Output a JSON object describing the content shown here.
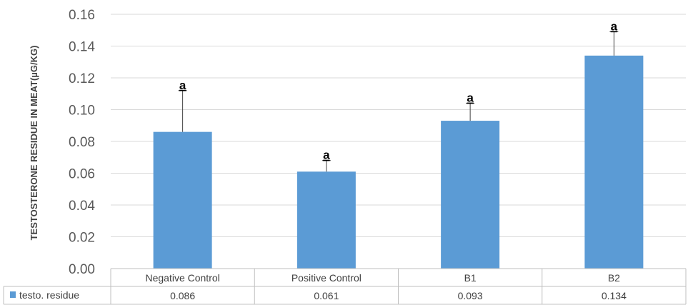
{
  "chart_data": {
    "type": "bar",
    "ylabel": "TESTOSTERONE RESIDUE IN MEAT(µG/KG)",
    "categories": [
      "Negative Control",
      "Positive Control",
      "B1",
      "B2"
    ],
    "series": [
      {
        "name": "testo. residue",
        "values": [
          0.086,
          0.061,
          0.093,
          0.134
        ],
        "value_labels": [
          "0.086",
          "0.061",
          "0.093",
          "0.134"
        ],
        "error_upper": [
          0.112,
          0.068,
          0.104,
          0.149
        ],
        "significance": [
          "a",
          "a",
          "a",
          "a"
        ],
        "color": "#5b9bd5"
      }
    ],
    "ylim": [
      0,
      0.16
    ],
    "yticks": [
      "0.00",
      "0.02",
      "0.04",
      "0.06",
      "0.08",
      "0.10",
      "0.12",
      "0.14",
      "0.16"
    ],
    "grid": true,
    "legend": "data-table"
  }
}
